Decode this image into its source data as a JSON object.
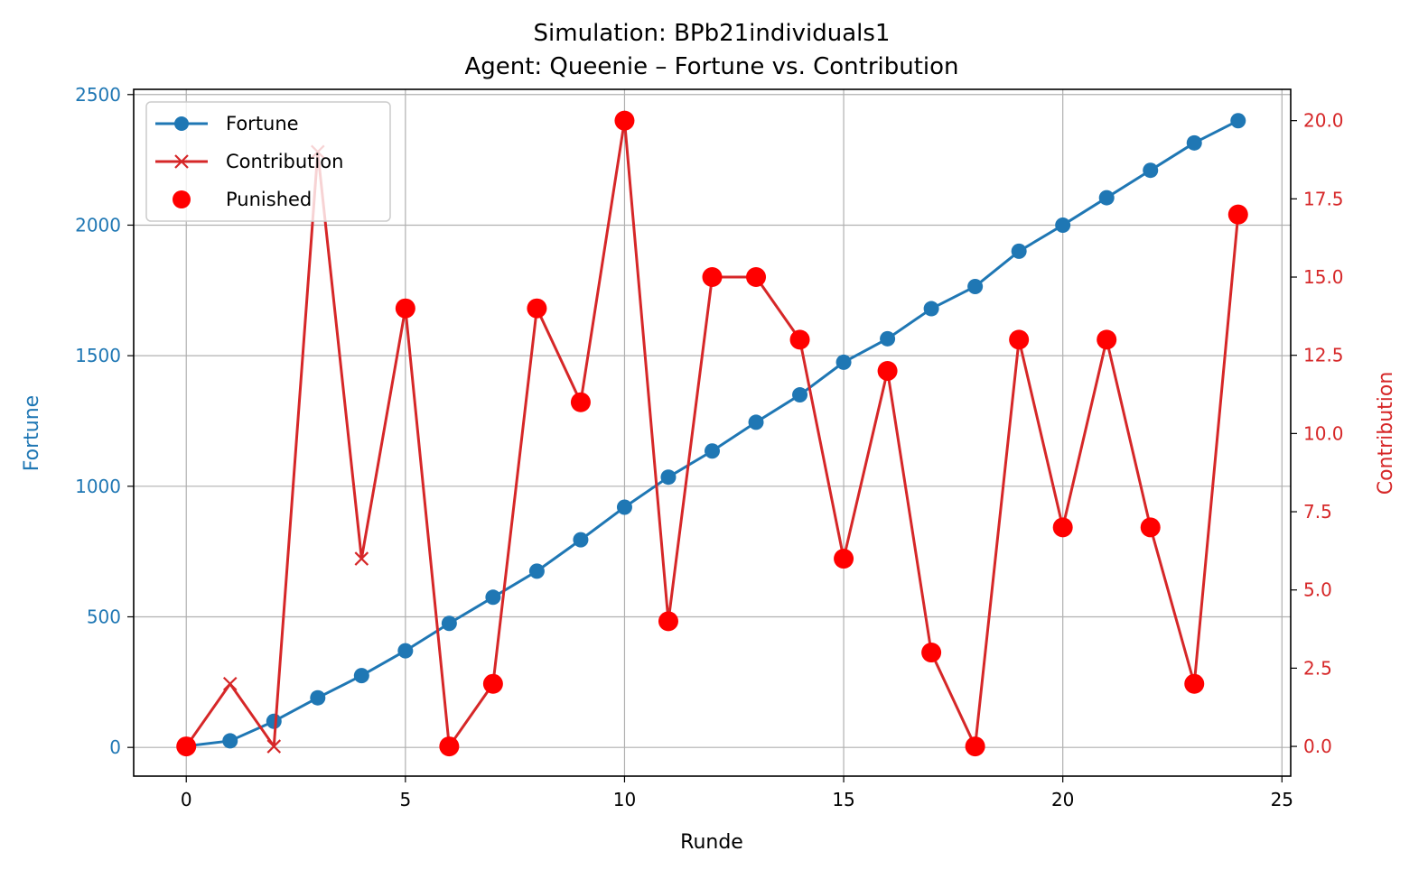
{
  "chart_data": {
    "type": "line",
    "title": "Simulation: BPb21individuals1",
    "subtitle": "Agent: Queenie – Fortune vs. Contribution",
    "xlabel": "Runde",
    "ylabel_left": "Fortune",
    "ylabel_right": "Contribution",
    "xlim": [
      -1.2,
      25.2
    ],
    "ylim_left": [
      -110,
      2520
    ],
    "ylim_right": [
      -0.95,
      21.0
    ],
    "x_ticks": [
      "0",
      "5",
      "10",
      "15",
      "20",
      "25"
    ],
    "y_left_ticks": [
      "0",
      "500",
      "1000",
      "1500",
      "2000",
      "2500"
    ],
    "y_right_ticks": [
      "0.0",
      "2.5",
      "5.0",
      "7.5",
      "10.0",
      "12.5",
      "15.0",
      "17.5",
      "20.0"
    ],
    "grid": true,
    "legend_position": "upper-left",
    "x": [
      0,
      1,
      2,
      3,
      4,
      5,
      6,
      7,
      8,
      9,
      10,
      11,
      12,
      13,
      14,
      15,
      16,
      17,
      18,
      19,
      20,
      21,
      22,
      23,
      24
    ],
    "series": [
      {
        "name": "Fortune",
        "axis": "left",
        "color": "#1f77b4",
        "marker": "circle",
        "values": [
          5,
          25,
          100,
          190,
          275,
          370,
          475,
          575,
          675,
          795,
          920,
          1035,
          1135,
          1245,
          1350,
          1475,
          1565,
          1680,
          1765,
          1900,
          2000,
          2105,
          2210,
          2315,
          2400
        ]
      },
      {
        "name": "Contribution",
        "axis": "right",
        "color": "#d62728",
        "marker": "x",
        "values": [
          0,
          2,
          0,
          19,
          6,
          14,
          0,
          2,
          14,
          11,
          20,
          4,
          15,
          15,
          13,
          6,
          12,
          3,
          0,
          13,
          7,
          13,
          7,
          2,
          17
        ]
      }
    ],
    "punished": {
      "name": "Punished",
      "color": "#ff0000",
      "x": [
        0,
        5,
        6,
        7,
        8,
        9,
        10,
        11,
        12,
        13,
        14,
        15,
        16,
        17,
        18,
        19,
        20,
        21,
        22,
        23,
        24
      ]
    }
  }
}
